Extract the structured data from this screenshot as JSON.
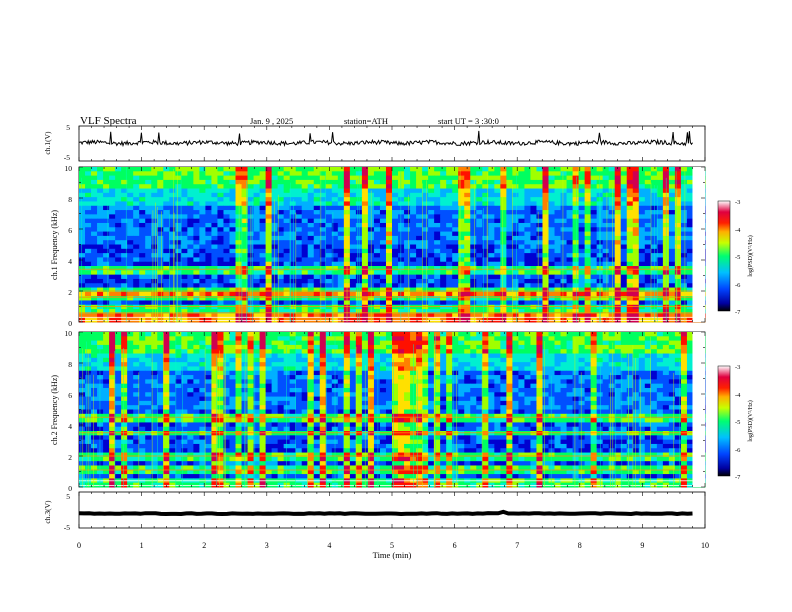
{
  "header": {
    "title": "VLF Spectra",
    "date": "Jan. 9 , 2025",
    "station": "station=ATH",
    "start": "start UT = 3 :30:0"
  },
  "chart_data": [
    {
      "type": "line",
      "panel": "ch1-waveform",
      "ylabel": "ch.1(V)",
      "ylim": [
        -5,
        5
      ],
      "ytick_labels": [
        "5",
        "-5"
      ],
      "xlim": [
        0,
        10
      ],
      "series": [
        {
          "approx_level": 0.2,
          "noise_amplitude": 1.2
        }
      ]
    },
    {
      "type": "heatmap",
      "panel": "ch1-spectrogram",
      "ylabel": "ch.1 Frequency (kHz)",
      "ylim": [
        0,
        10
      ],
      "ytick_labels": [
        "0",
        "2",
        "4",
        "6",
        "8",
        "10"
      ],
      "xlim": [
        0,
        10
      ],
      "colorbar": {
        "label": "log(PSD)(V²/Hz)",
        "range": [
          -7,
          -3
        ],
        "tick_labels": [
          "-3",
          "-4",
          "-5",
          "-6",
          "-7"
        ],
        "colors": [
          "#000000",
          "#0000a0",
          "#0044ff",
          "#00c0ff",
          "#00ff70",
          "#c8ff00",
          "#ffb000",
          "#ff2000",
          "#e00040",
          "#ffffff"
        ]
      },
      "bands_khz": [
        0.1,
        0.3,
        0.6,
        1.0,
        1.6,
        2.0,
        3.4
      ]
    },
    {
      "type": "heatmap",
      "panel": "ch2-spectrogram",
      "ylabel": "ch.2 Frequency (kHz)",
      "ylim": [
        0,
        10
      ],
      "ytick_labels": [
        "0",
        "2",
        "4",
        "6",
        "8",
        "10"
      ],
      "xlim": [
        0,
        10
      ],
      "colorbar": {
        "label": "log(PSD)(V²/Hz)",
        "range": [
          -7,
          -3
        ],
        "tick_labels": [
          "-3",
          "-4",
          "-5",
          "-6",
          "-7"
        ],
        "colors": [
          "#000000",
          "#0000a0",
          "#0044ff",
          "#00c0ff",
          "#00ff70",
          "#c8ff00",
          "#ffb000",
          "#ff2000",
          "#e00040",
          "#ffffff"
        ]
      },
      "bands_khz": [
        0.1,
        0.4,
        1.1,
        2.0,
        3.5,
        4.5
      ]
    },
    {
      "type": "line",
      "panel": "ch3-waveform",
      "ylabel": "ch.3(V)",
      "ylim": [
        -5,
        5
      ],
      "ytick_labels": [
        "5",
        "-5"
      ],
      "xlim": [
        0,
        10
      ],
      "xlabel": "Time (min)",
      "xtick_labels": [
        "0",
        "1",
        "2",
        "3",
        "4",
        "5",
        "6",
        "7",
        "8",
        "9",
        "10"
      ],
      "series": [
        {
          "approx_level": -1.0,
          "noise_amplitude": 0.2
        }
      ]
    }
  ]
}
